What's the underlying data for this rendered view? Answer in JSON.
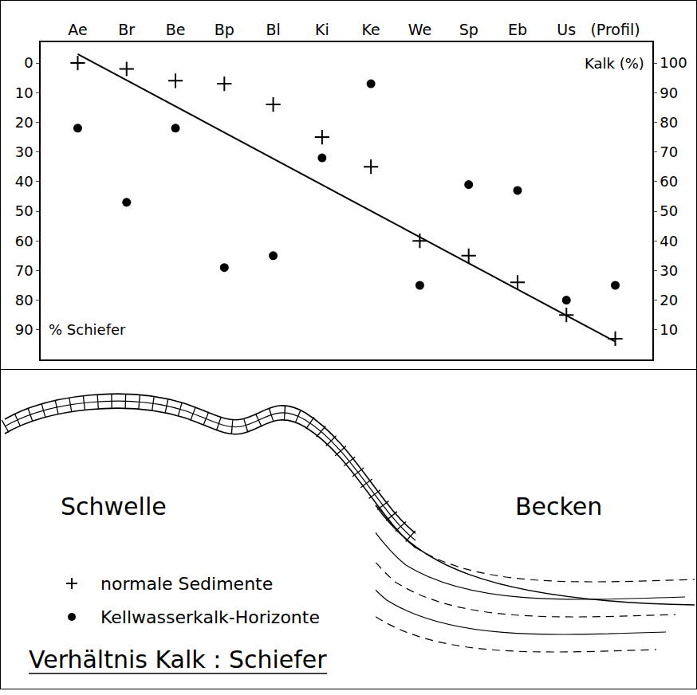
{
  "chart_data": {
    "type": "scatter",
    "categories": [
      "Ae",
      "Br",
      "Be",
      "Bp",
      "Bl",
      "Ki",
      "Ke",
      "We",
      "Sp",
      "Eb",
      "Us",
      "(Profil)"
    ],
    "series": [
      {
        "name": "normale Sedimente",
        "marker": "cross",
        "color": "#000000",
        "values": [
          0,
          2,
          6,
          7,
          14,
          25,
          35,
          60,
          65,
          74,
          85,
          93
        ]
      },
      {
        "name": "Kellwasserkalk-Horizonte",
        "marker": "circle",
        "color": "#000000",
        "values": [
          22,
          47,
          22,
          69,
          65,
          32,
          7,
          75,
          41,
          43,
          80,
          75
        ]
      },
      {
        "type": "line",
        "line_style": "solid",
        "color": "#000000",
        "values": [
          -3,
          null,
          null,
          null,
          null,
          null,
          null,
          null,
          null,
          null,
          null,
          94
        ]
      }
    ],
    "ylim": [
      100,
      -7
    ],
    "yticks": [
      0,
      10,
      20,
      30,
      40,
      50,
      60,
      70,
      80,
      90
    ],
    "y_label": "% Schiefer",
    "y2lim": [
      0,
      107
    ],
    "y2ticks": [
      10,
      20,
      30,
      40,
      50,
      60,
      70,
      80,
      90,
      100
    ],
    "y2_label": "Kalk (%)",
    "grid": false,
    "legend": "bottom left"
  },
  "diagram": {
    "labels": [
      "Schwelle",
      "Becken"
    ],
    "title": "Verhältnis Kalk : Schiefer"
  }
}
